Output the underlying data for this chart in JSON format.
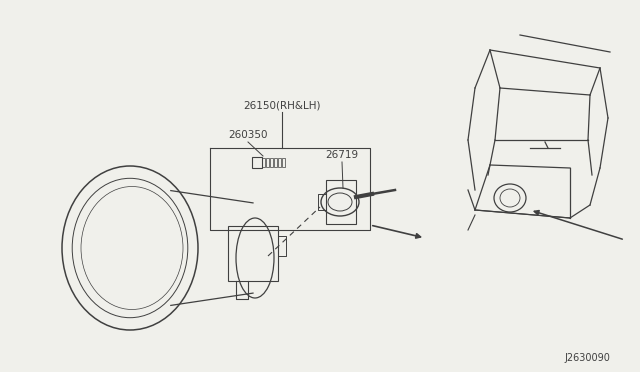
{
  "bg_color": "#f0f0eb",
  "diagram_id": "J2630090",
  "text_color": "#404040",
  "line_color": "#404040",
  "label_26150": "26150(RH&LH)",
  "label_260350": "260350",
  "label_26719": "26719",
  "font_size": 7.5
}
